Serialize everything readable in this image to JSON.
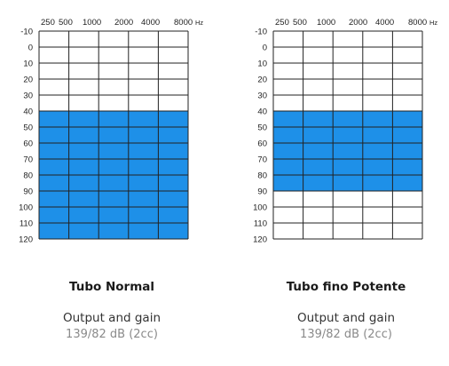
{
  "chart_data": [
    {
      "type": "heatmap",
      "title": "Tubo Normal",
      "x_ticks": [
        "250",
        "500",
        "1000",
        "2000",
        "4000",
        "8000"
      ],
      "x_unit": "Hz",
      "y_ticks": [
        "-10",
        "0",
        "10",
        "20",
        "30",
        "40",
        "50",
        "60",
        "70",
        "80",
        "90",
        "100",
        "110",
        "120"
      ],
      "ylim": [
        -10,
        120
      ],
      "y_direction": "downward",
      "fitting_range_db": [
        40,
        120
      ],
      "fill_color": "#1e90e8",
      "output_and_gain_label": "Output and gain",
      "output_and_gain_value": "139/82 dB (2cc)"
    },
    {
      "type": "heatmap",
      "title": "Tubo fino Potente",
      "x_ticks": [
        "250",
        "500",
        "1000",
        "2000",
        "4000",
        "8000"
      ],
      "x_unit": "Hz",
      "y_ticks": [
        "-10",
        "0",
        "10",
        "20",
        "30",
        "40",
        "50",
        "60",
        "70",
        "80",
        "90",
        "100",
        "110",
        "120"
      ],
      "ylim": [
        -10,
        120
      ],
      "y_direction": "downward",
      "fitting_range_db": [
        40,
        90
      ],
      "fill_color": "#1e90e8",
      "output_and_gain_label": "Output and gain",
      "output_and_gain_value": "139/82 dB (2cc)"
    }
  ]
}
